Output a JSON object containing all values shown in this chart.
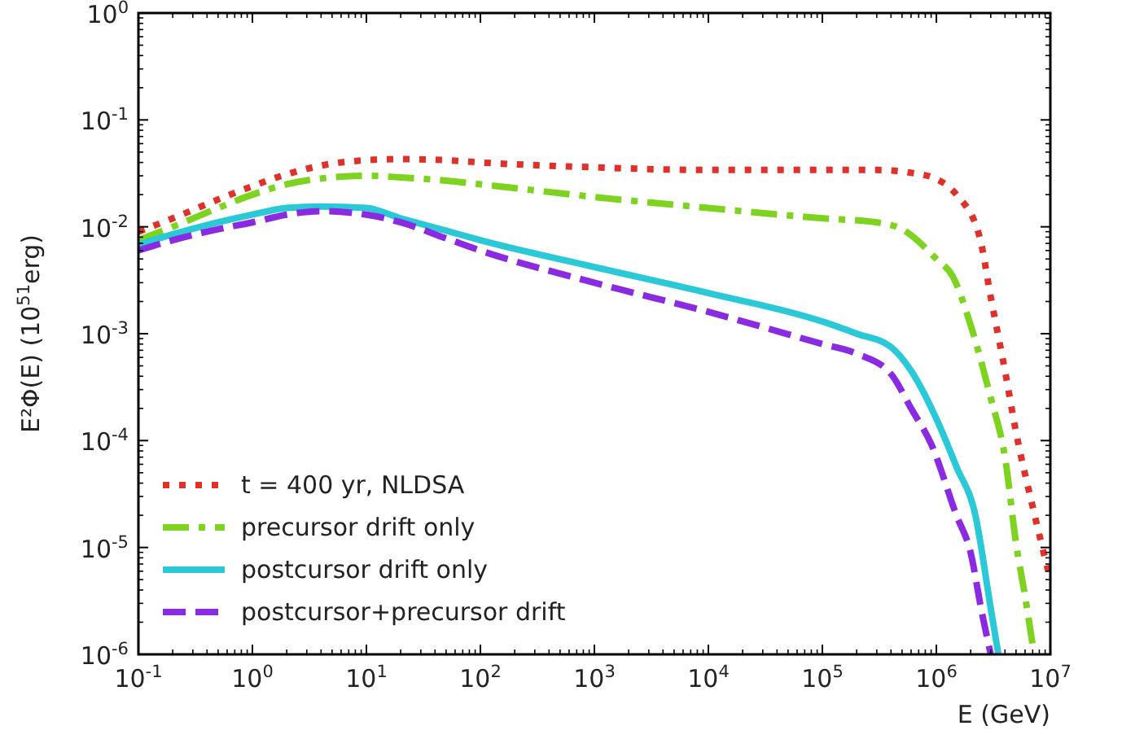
{
  "chart_data": {
    "type": "line",
    "xlabel": "E (GeV)",
    "ylabel": "E²Φ(E) (10$^{51}$erg)",
    "log": "xy",
    "grid": false,
    "legend": "bottom left",
    "xlim": [
      0.1,
      10000000
    ],
    "ylim": [
      1e-06,
      1
    ],
    "xticks": [
      {
        "value": 0.1,
        "label": "10$^{-1}$"
      },
      {
        "value": 1,
        "label": "10$^{0}$"
      },
      {
        "value": 10,
        "label": "10$^{1}$"
      },
      {
        "value": 100,
        "label": "10$^{2}$"
      },
      {
        "value": 1000,
        "label": "10$^{3}$"
      },
      {
        "value": 10000,
        "label": "10$^{4}$"
      },
      {
        "value": 100000,
        "label": "10$^{5}$"
      },
      {
        "value": 1000000,
        "label": "10$^{6}$"
      },
      {
        "value": 10000000,
        "label": "10$^{7}$"
      }
    ],
    "yticks": [
      {
        "value": 1e-06,
        "label": "10$^{-6}$"
      },
      {
        "value": 1e-05,
        "label": "10$^{-5}$"
      },
      {
        "value": 0.0001,
        "label": "10$^{-4}$"
      },
      {
        "value": 0.001,
        "label": "10$^{-3}$"
      },
      {
        "value": 0.01,
        "label": "10$^{-2}$"
      },
      {
        "value": 0.1,
        "label": "10$^{-1}$"
      },
      {
        "value": 1,
        "label": "10$^{0}$"
      }
    ],
    "series": [
      {
        "name": "t = 400 yr, NLDSA",
        "color": "#e0302a",
        "line_style": "dotted",
        "x": [
          0.1,
          0.2,
          0.5,
          1,
          2,
          5,
          10,
          20,
          50,
          100,
          1000,
          10000,
          100000,
          300000,
          600000,
          1000000,
          1500000,
          2400000,
          3000000,
          4000000,
          5000000,
          7000000,
          10000000
        ],
        "values": [
          0.009,
          0.012,
          0.018,
          0.024,
          0.031,
          0.039,
          0.042,
          0.043,
          0.042,
          0.04,
          0.036,
          0.034,
          0.034,
          0.034,
          0.032,
          0.028,
          0.02,
          0.008,
          0.0022,
          0.00045,
          0.00012,
          2.4e-05,
          5e-06
        ]
      },
      {
        "name": "precursor drift only",
        "color": "#7ed321",
        "line_style": "dashdot",
        "x": [
          0.1,
          0.2,
          0.5,
          1,
          2,
          5,
          10,
          20,
          50,
          100,
          1000,
          10000,
          100000,
          300000,
          500000,
          1000000,
          1400000,
          2000000,
          3000000,
          4000000,
          5000000,
          6000000,
          7200000
        ],
        "values": [
          0.0075,
          0.01,
          0.015,
          0.02,
          0.025,
          0.029,
          0.03,
          0.029,
          0.027,
          0.025,
          0.019,
          0.015,
          0.012,
          0.011,
          0.0095,
          0.005,
          0.0034,
          0.0012,
          0.00025,
          7e-05,
          1.1e-05,
          3.5e-06,
          1e-06
        ]
      },
      {
        "name": "postcursor drift only",
        "color": "#2bc8d8",
        "line_style": "solid",
        "x": [
          0.1,
          0.2,
          0.5,
          1,
          2,
          4,
          10,
          20,
          50,
          100,
          1000,
          10000,
          100000,
          200000,
          400000,
          600000,
          1000000,
          1500000,
          2200000,
          3000000,
          3500000
        ],
        "values": [
          0.0068,
          0.0085,
          0.011,
          0.013,
          0.015,
          0.0155,
          0.015,
          0.012,
          0.0092,
          0.0075,
          0.0042,
          0.0024,
          0.0013,
          0.001,
          0.00075,
          0.00045,
          0.00016,
          5.7e-05,
          2e-05,
          2.7e-06,
          1e-06
        ]
      },
      {
        "name": "postcursor+precursor drift",
        "color": "#8a2be2",
        "line_style": "dashed",
        "x": [
          0.1,
          0.2,
          0.5,
          1,
          2,
          4,
          10,
          20,
          50,
          100,
          1000,
          10000,
          100000,
          200000,
          400000,
          600000,
          900000,
          1500000,
          2000000,
          2500000,
          3000000
        ],
        "values": [
          0.006,
          0.0075,
          0.0095,
          0.011,
          0.013,
          0.014,
          0.013,
          0.011,
          0.0078,
          0.006,
          0.003,
          0.0016,
          0.0008,
          0.00065,
          0.00042,
          0.0002,
          9.3e-05,
          2e-05,
          8.9e-06,
          2.5e-06,
          1e-06
        ]
      }
    ]
  }
}
